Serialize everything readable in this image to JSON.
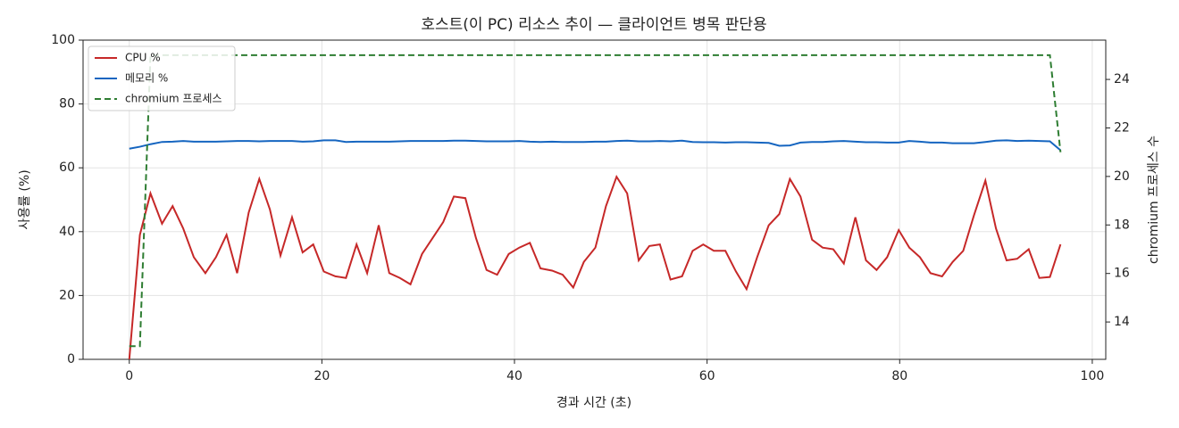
{
  "chart_data": {
    "type": "line",
    "title": "호스트(이 PC) 리소스 추이 — 클라이언트 병목 판단용",
    "xlabel": "경과 시간 (초)",
    "ylabel": "사용률 (%)",
    "y2label": "chromium 프로세스 수",
    "x": [
      0,
      1.1,
      2.2,
      3.4,
      4.5,
      5.6,
      6.7,
      7.9,
      9.0,
      10.1,
      11.2,
      12.4,
      13.5,
      14.6,
      15.7,
      16.9,
      18.0,
      19.1,
      20.2,
      21.4,
      22.5,
      23.6,
      24.7,
      25.9,
      27.0,
      28.1,
      29.2,
      30.4,
      31.5,
      32.6,
      33.7,
      34.9,
      36.0,
      37.1,
      38.2,
      39.4,
      40.5,
      41.6,
      42.7,
      43.9,
      45.0,
      46.1,
      47.2,
      48.4,
      49.5,
      50.6,
      51.7,
      52.9,
      54.0,
      55.1,
      56.2,
      57.4,
      58.5,
      59.6,
      60.7,
      61.9,
      63.0,
      64.1,
      65.2,
      66.4,
      67.5,
      68.6,
      69.7,
      70.9,
      72.0,
      73.1,
      74.2,
      75.4,
      76.5,
      77.6,
      78.7,
      79.9,
      81.0,
      82.1,
      83.2,
      84.4,
      85.5,
      86.6,
      87.7,
      88.9,
      90.0,
      91.1,
      92.2,
      93.4,
      94.5,
      95.6,
      96.7
    ],
    "series": [
      {
        "name": "CPU %",
        "color": "#c62828",
        "linestyle": "solid",
        "axis": "y",
        "values": [
          0,
          39,
          52,
          42.5,
          48,
          41,
          32,
          27,
          32,
          39,
          27,
          46,
          56.5,
          47,
          32.5,
          44.5,
          33.5,
          36,
          27.5,
          26,
          25.5,
          36,
          27,
          42,
          27,
          25.5,
          23.5,
          33,
          38,
          43,
          51,
          50.5,
          38,
          28,
          26.5,
          33,
          35,
          36.5,
          28.5,
          27.8,
          26.5,
          22.5,
          30.5,
          35,
          48,
          57.2,
          52,
          31,
          35.5,
          36,
          25,
          26,
          34,
          36,
          34,
          34,
          27.5,
          22,
          32,
          42,
          45.5,
          56.5,
          51,
          37.5,
          35,
          34.5,
          30,
          44.5,
          31,
          28,
          32,
          40.5,
          35,
          32,
          27,
          26,
          30.5,
          34,
          45,
          56,
          41,
          31,
          31.5,
          34.5,
          25.5,
          25.8,
          36
        ]
      },
      {
        "name": "메모리 %",
        "color": "#1565c0",
        "linestyle": "solid",
        "axis": "y",
        "values": [
          66,
          66.6,
          67.4,
          68.1,
          68.2,
          68.4,
          68.2,
          68.2,
          68.2,
          68.3,
          68.4,
          68.4,
          68.3,
          68.4,
          68.4,
          68.4,
          68.2,
          68.3,
          68.6,
          68.6,
          68.1,
          68.2,
          68.2,
          68.2,
          68.2,
          68.3,
          68.4,
          68.4,
          68.4,
          68.4,
          68.5,
          68.5,
          68.4,
          68.3,
          68.3,
          68.3,
          68.4,
          68.2,
          68.1,
          68.2,
          68.1,
          68.1,
          68.1,
          68.2,
          68.2,
          68.4,
          68.5,
          68.3,
          68.3,
          68.4,
          68.3,
          68.5,
          68.1,
          68.0,
          68.0,
          67.9,
          68.0,
          68.0,
          67.9,
          67.8,
          66.9,
          67.0,
          67.9,
          68.1,
          68.1,
          68.3,
          68.4,
          68.2,
          68.0,
          68.0,
          67.9,
          67.9,
          68.4,
          68.2,
          67.9,
          67.9,
          67.7,
          67.7,
          67.7,
          68.1,
          68.5,
          68.6,
          68.4,
          68.5,
          68.4,
          68.3,
          65.5
        ]
      },
      {
        "name": "chromium 프로세스",
        "color": "#2e7d32",
        "linestyle": "dashed",
        "axis": "y2",
        "values": [
          13,
          13,
          25,
          25,
          25,
          25,
          25,
          25,
          25,
          25,
          25,
          25,
          25,
          25,
          25,
          25,
          25,
          25,
          25,
          25,
          25,
          25,
          25,
          25,
          25,
          25,
          25,
          25,
          25,
          25,
          25,
          25,
          25,
          25,
          25,
          25,
          25,
          25,
          25,
          25,
          25,
          25,
          25,
          25,
          25,
          25,
          25,
          25,
          25,
          25,
          25,
          25,
          25,
          25,
          25,
          25,
          25,
          25,
          25,
          25,
          25,
          25,
          25,
          25,
          25,
          25,
          25,
          25,
          25,
          25,
          25,
          25,
          25,
          25,
          25,
          25,
          25,
          25,
          25,
          25,
          25,
          25,
          25,
          25,
          25,
          25,
          21
        ]
      }
    ],
    "xlim": [
      -4.8,
      101.4
    ],
    "xticks": [
      0,
      20,
      40,
      60,
      80,
      100
    ],
    "ylim": [
      0,
      100
    ],
    "yticks": [
      0,
      20,
      40,
      60,
      80,
      100
    ],
    "y2lim": [
      12.46,
      25.62
    ],
    "y2ticks": [
      14,
      16,
      18,
      20,
      22,
      24
    ],
    "grid": true,
    "legend": "upper-left"
  }
}
